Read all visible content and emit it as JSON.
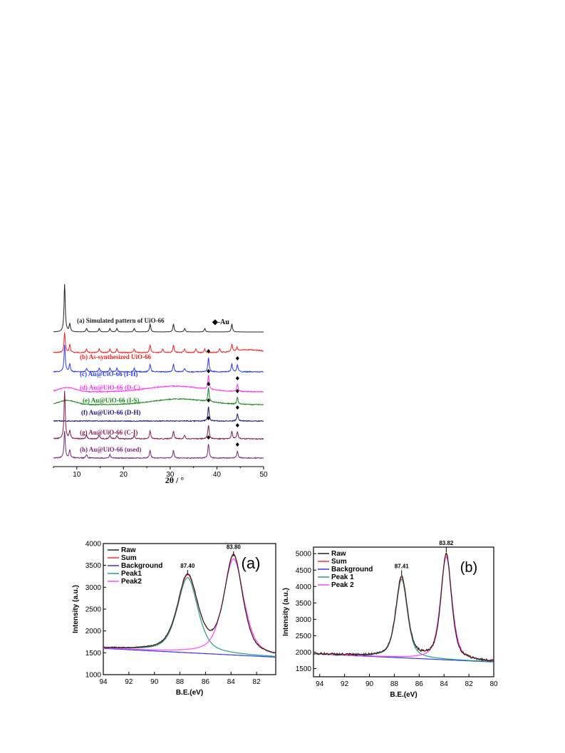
{
  "chart_data": [
    {
      "type": "line",
      "xlabel": "2θ / °",
      "ylabel": "",
      "xlim": [
        5,
        50
      ],
      "xticks": [
        10,
        20,
        30,
        40,
        50
      ],
      "legend": [
        "◆-Au"
      ],
      "grid": false,
      "series": [
        {
          "name": "(a) Simulated pattern of UiO-66",
          "color": "#222222",
          "peaks_2theta": [
            7.4,
            8.5,
            12.1,
            14.8,
            17.1,
            18.6,
            22.3,
            25.7,
            30.7,
            33.1,
            37.4,
            43.2
          ],
          "baseline_offset": 0
        },
        {
          "name": "(b) As-synthesized UiO-66",
          "color": "#ff2020",
          "peaks_2theta": [
            7.4,
            8.5,
            12.1,
            14.8,
            17.1,
            18.6,
            22.3,
            25.7,
            28.4,
            30.7,
            33.1,
            35.5,
            37.4,
            40.6,
            43.2,
            44.3
          ],
          "baseline_offset": 1
        },
        {
          "name": "(c) Au@UiO-66 (I-H)",
          "color": "#2b3bff",
          "peaks_2theta": [
            7.4,
            8.5,
            12.1,
            14.8,
            17.1,
            18.6,
            22.3,
            25.7,
            30.7,
            33.1,
            38.2,
            43.2,
            44.4
          ],
          "au_markers": [
            38.2,
            44.4
          ],
          "baseline_offset": 2
        },
        {
          "name": "(d) Au@UiO-66 (D-C)",
          "color": "#ff33ff",
          "peaks_2theta": [
            38.2,
            44.4
          ],
          "broad_hump": 31,
          "au_markers": [
            38.2,
            44.4
          ],
          "baseline_offset": 3
        },
        {
          "name": "(e) Au@UiO-66 (I-S)",
          "color": "#1a8a1a",
          "peaks_2theta": [
            38.2,
            44.4
          ],
          "broad_hump": 32,
          "au_markers": [
            38.2,
            44.4
          ],
          "baseline_offset": 4
        },
        {
          "name": "(f) Au@UiO-66 (D-H)",
          "color": "#1a1a80",
          "peaks_2theta": [
            38.2,
            44.4
          ],
          "au_markers": [
            38.2,
            44.4
          ],
          "baseline_offset": 5
        },
        {
          "name": "(g) Au@UiO-66 (C-I)",
          "color": "#8b1a50",
          "peaks_2theta": [
            7.4,
            8.5,
            12.1,
            14.8,
            17.1,
            18.6,
            22.3,
            25.7,
            30.7,
            33.1,
            38.2,
            43.2,
            44.4
          ],
          "au_markers": [
            38.2,
            44.4
          ],
          "baseline_offset": 6
        },
        {
          "name": "(h) Au@UiO-66 (used)",
          "color": "#7a2a7a",
          "peaks_2theta": [
            7.4,
            8.5,
            12.1,
            17.1,
            25.7,
            30.7,
            38.2,
            44.4
          ],
          "au_markers": [
            38.2,
            44.4
          ],
          "baseline_offset": 7
        }
      ]
    },
    {
      "type": "line",
      "panel_label": "(a)",
      "xlabel": "B.E.(eV)",
      "ylabel": "Intensity (a.u.)",
      "xlim": [
        94,
        80.5
      ],
      "ylim": [
        1000,
        4000
      ],
      "xticks": [
        94,
        92,
        90,
        88,
        86,
        84,
        82
      ],
      "yticks": [
        1000,
        1500,
        2000,
        2500,
        3000,
        3500,
        4000
      ],
      "legend_position": "top-left",
      "annotations": [
        {
          "x": 87.4,
          "text": "87.40"
        },
        {
          "x": 83.8,
          "text": "83.80"
        }
      ],
      "series": [
        {
          "name": "Raw",
          "color": "#222222",
          "peaks": [
            {
              "center": 87.4,
              "height": 3250
            },
            {
              "center": 83.8,
              "height": 3680
            }
          ],
          "baseline": [
            1600,
            1400
          ]
        },
        {
          "name": "Sum",
          "color": "#ff3030",
          "peaks": [
            {
              "center": 87.4,
              "height": 3220
            },
            {
              "center": 83.8,
              "height": 3700
            }
          ],
          "baseline": [
            1600,
            1400
          ]
        },
        {
          "name": "Background",
          "color": "#3333ff",
          "baseline": [
            1600,
            1400
          ]
        },
        {
          "name": "Peak1",
          "color": "#20a080",
          "peaks": [
            {
              "center": 87.4,
              "height": 3220
            }
          ],
          "baseline": [
            1600,
            1400
          ]
        },
        {
          "name": "Peak2",
          "color": "#ff44ff",
          "peaks": [
            {
              "center": 83.8,
              "height": 3650
            }
          ],
          "baseline": [
            1600,
            1400
          ]
        }
      ]
    },
    {
      "type": "line",
      "panel_label": "(b)",
      "xlabel": "B.E.(eV)",
      "ylabel": "Intensity (a.u.)",
      "xlim": [
        94.5,
        80
      ],
      "ylim": [
        1250,
        5200
      ],
      "xticks": [
        94,
        92,
        90,
        88,
        86,
        84,
        82,
        80
      ],
      "yticks": [
        1500,
        2000,
        2500,
        3000,
        3500,
        4000,
        4500,
        5000
      ],
      "legend_position": "top-left",
      "annotations": [
        {
          "x": 87.41,
          "text": "87.41"
        },
        {
          "x": 83.82,
          "text": "83.82"
        }
      ],
      "series": [
        {
          "name": "Raw",
          "color": "#222222",
          "peaks": [
            {
              "center": 87.41,
              "height": 4300
            },
            {
              "center": 83.82,
              "height": 5000
            }
          ],
          "baseline": [
            1950,
            1700
          ]
        },
        {
          "name": "Sum",
          "color": "#ff3030",
          "peaks": [
            {
              "center": 87.41,
              "height": 4250
            },
            {
              "center": 83.82,
              "height": 4950
            }
          ],
          "baseline": [
            1950,
            1700
          ]
        },
        {
          "name": "Background",
          "color": "#3333ff",
          "baseline": [
            1950,
            1700
          ]
        },
        {
          "name": "Peak 1",
          "color": "#20a080",
          "peaks": [
            {
              "center": 87.41,
              "height": 4220
            }
          ],
          "baseline": [
            1950,
            1700
          ]
        },
        {
          "name": "Peak 2",
          "color": "#ff44ff",
          "peaks": [
            {
              "center": 83.82,
              "height": 4900
            }
          ],
          "baseline": [
            1950,
            1700
          ]
        }
      ]
    }
  ]
}
